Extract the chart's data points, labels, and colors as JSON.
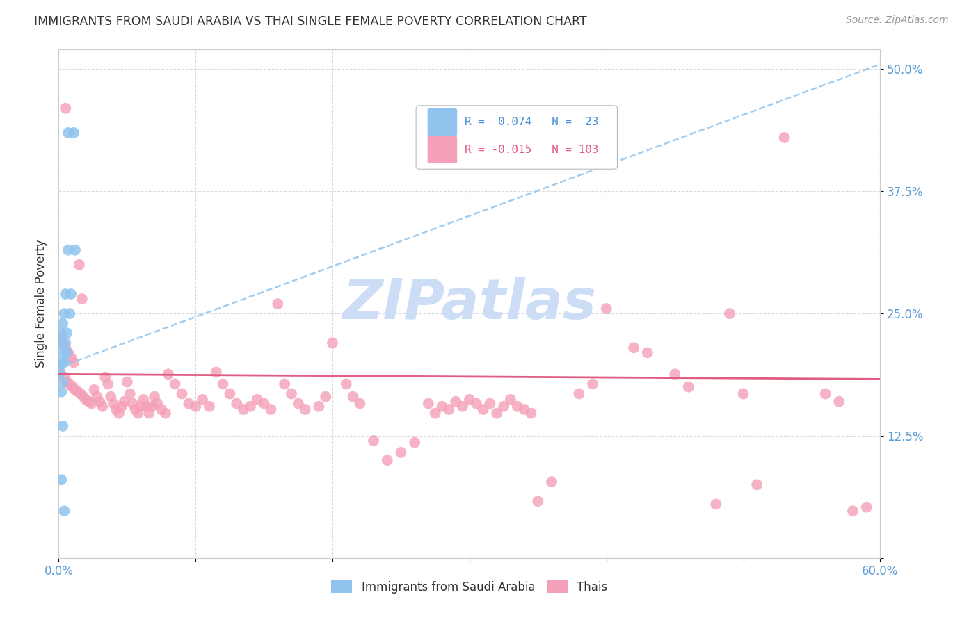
{
  "title": "IMMIGRANTS FROM SAUDI ARABIA VS THAI SINGLE FEMALE POVERTY CORRELATION CHART",
  "source": "Source: ZipAtlas.com",
  "ylabel": "Single Female Poverty",
  "x_min": 0.0,
  "x_max": 0.6,
  "y_min": 0.0,
  "y_max": 0.52,
  "x_ticks": [
    0.0,
    0.1,
    0.2,
    0.3,
    0.4,
    0.5,
    0.6
  ],
  "x_tick_labels": [
    "0.0%",
    "",
    "",
    "",
    "",
    "",
    "60.0%"
  ],
  "y_ticks": [
    0.0,
    0.125,
    0.25,
    0.375,
    0.5
  ],
  "y_tick_labels": [
    "",
    "12.5%",
    "25.0%",
    "37.5%",
    "50.0%"
  ],
  "legend_label_colors": [
    "#4a90d9",
    "#e05c80"
  ],
  "saudi_color": "#90c4ee",
  "thai_color": "#f4a0b8",
  "saudi_trend_color": "#90c4ee",
  "thai_trend_color": "#e05c80",
  "watermark": "ZIPatlas",
  "watermark_color": "#ccddf5",
  "background_color": "#ffffff",
  "grid_color": "#cccccc",
  "axis_color": "#cccccc",
  "tick_label_color": "#5b9bd5",
  "title_color": "#333333",
  "saudi_trend_x0": 0.0,
  "saudi_trend_y0": 0.195,
  "saudi_trend_x1": 0.6,
  "saudi_trend_y1": 0.505,
  "thai_trend_x0": 0.0,
  "thai_trend_y0": 0.188,
  "thai_trend_x1": 0.6,
  "thai_trend_y1": 0.183,
  "saudi_points": [
    [
      0.007,
      0.435
    ],
    [
      0.011,
      0.435
    ],
    [
      0.007,
      0.315
    ],
    [
      0.012,
      0.315
    ],
    [
      0.005,
      0.27
    ],
    [
      0.009,
      0.27
    ],
    [
      0.004,
      0.25
    ],
    [
      0.008,
      0.25
    ],
    [
      0.003,
      0.24
    ],
    [
      0.002,
      0.23
    ],
    [
      0.006,
      0.23
    ],
    [
      0.001,
      0.22
    ],
    [
      0.005,
      0.22
    ],
    [
      0.003,
      0.21
    ],
    [
      0.006,
      0.21
    ],
    [
      0.002,
      0.2
    ],
    [
      0.004,
      0.2
    ],
    [
      0.001,
      0.19
    ],
    [
      0.003,
      0.18
    ],
    [
      0.002,
      0.17
    ],
    [
      0.003,
      0.135
    ],
    [
      0.002,
      0.08
    ],
    [
      0.004,
      0.048
    ]
  ],
  "thai_points": [
    [
      0.005,
      0.46
    ],
    [
      0.49,
      0.25
    ],
    [
      0.015,
      0.3
    ],
    [
      0.53,
      0.43
    ],
    [
      0.017,
      0.265
    ],
    [
      0.16,
      0.26
    ],
    [
      0.002,
      0.225
    ],
    [
      0.003,
      0.22
    ],
    [
      0.005,
      0.215
    ],
    [
      0.007,
      0.21
    ],
    [
      0.009,
      0.205
    ],
    [
      0.011,
      0.2
    ],
    [
      0.001,
      0.19
    ],
    [
      0.004,
      0.185
    ],
    [
      0.006,
      0.18
    ],
    [
      0.008,
      0.178
    ],
    [
      0.01,
      0.175
    ],
    [
      0.012,
      0.172
    ],
    [
      0.014,
      0.17
    ],
    [
      0.016,
      0.168
    ],
    [
      0.018,
      0.165
    ],
    [
      0.02,
      0.162
    ],
    [
      0.022,
      0.16
    ],
    [
      0.024,
      0.158
    ],
    [
      0.026,
      0.172
    ],
    [
      0.028,
      0.165
    ],
    [
      0.03,
      0.16
    ],
    [
      0.032,
      0.155
    ],
    [
      0.034,
      0.185
    ],
    [
      0.036,
      0.178
    ],
    [
      0.038,
      0.165
    ],
    [
      0.04,
      0.158
    ],
    [
      0.042,
      0.152
    ],
    [
      0.044,
      0.148
    ],
    [
      0.046,
      0.155
    ],
    [
      0.048,
      0.16
    ],
    [
      0.05,
      0.18
    ],
    [
      0.052,
      0.168
    ],
    [
      0.054,
      0.158
    ],
    [
      0.056,
      0.152
    ],
    [
      0.058,
      0.148
    ],
    [
      0.06,
      0.155
    ],
    [
      0.062,
      0.162
    ],
    [
      0.064,
      0.155
    ],
    [
      0.066,
      0.148
    ],
    [
      0.068,
      0.155
    ],
    [
      0.07,
      0.165
    ],
    [
      0.072,
      0.158
    ],
    [
      0.075,
      0.152
    ],
    [
      0.078,
      0.148
    ],
    [
      0.08,
      0.188
    ],
    [
      0.085,
      0.178
    ],
    [
      0.09,
      0.168
    ],
    [
      0.095,
      0.158
    ],
    [
      0.1,
      0.155
    ],
    [
      0.105,
      0.162
    ],
    [
      0.11,
      0.155
    ],
    [
      0.115,
      0.19
    ],
    [
      0.12,
      0.178
    ],
    [
      0.125,
      0.168
    ],
    [
      0.13,
      0.158
    ],
    [
      0.135,
      0.152
    ],
    [
      0.14,
      0.155
    ],
    [
      0.145,
      0.162
    ],
    [
      0.15,
      0.158
    ],
    [
      0.155,
      0.152
    ],
    [
      0.165,
      0.178
    ],
    [
      0.17,
      0.168
    ],
    [
      0.175,
      0.158
    ],
    [
      0.18,
      0.152
    ],
    [
      0.19,
      0.155
    ],
    [
      0.195,
      0.165
    ],
    [
      0.2,
      0.22
    ],
    [
      0.21,
      0.178
    ],
    [
      0.215,
      0.165
    ],
    [
      0.22,
      0.158
    ],
    [
      0.23,
      0.12
    ],
    [
      0.24,
      0.1
    ],
    [
      0.25,
      0.108
    ],
    [
      0.26,
      0.118
    ],
    [
      0.27,
      0.158
    ],
    [
      0.275,
      0.148
    ],
    [
      0.28,
      0.155
    ],
    [
      0.285,
      0.152
    ],
    [
      0.29,
      0.16
    ],
    [
      0.295,
      0.155
    ],
    [
      0.3,
      0.162
    ],
    [
      0.305,
      0.158
    ],
    [
      0.31,
      0.152
    ],
    [
      0.315,
      0.158
    ],
    [
      0.32,
      0.148
    ],
    [
      0.325,
      0.155
    ],
    [
      0.33,
      0.162
    ],
    [
      0.335,
      0.155
    ],
    [
      0.34,
      0.152
    ],
    [
      0.345,
      0.148
    ],
    [
      0.35,
      0.058
    ],
    [
      0.36,
      0.078
    ],
    [
      0.38,
      0.168
    ],
    [
      0.39,
      0.178
    ],
    [
      0.4,
      0.255
    ],
    [
      0.42,
      0.215
    ],
    [
      0.45,
      0.188
    ],
    [
      0.46,
      0.175
    ],
    [
      0.5,
      0.168
    ],
    [
      0.56,
      0.168
    ],
    [
      0.58,
      0.048
    ],
    [
      0.59,
      0.052
    ],
    [
      0.48,
      0.055
    ],
    [
      0.51,
      0.075
    ],
    [
      0.43,
      0.21
    ],
    [
      0.57,
      0.16
    ]
  ]
}
